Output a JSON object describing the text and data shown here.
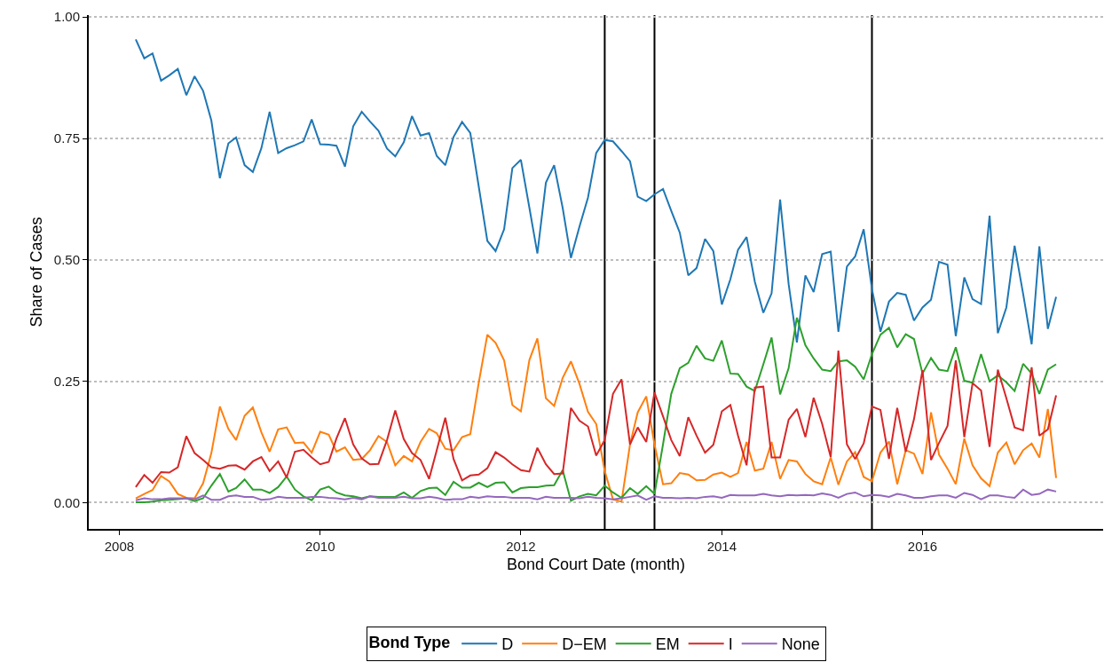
{
  "chart_data": {
    "type": "line",
    "xlabel": "Bond Court Date (month)",
    "ylabel": "Share of Cases",
    "legend_title": "Bond Type",
    "legend": "bottom",
    "grid": "y",
    "line_style": "solid",
    "marker": "none",
    "xlim": [
      "2007-09-12",
      "2017-10-19"
    ],
    "xticks": [
      "2008",
      "2010",
      "2012",
      "2014",
      "2016"
    ],
    "ylim": [
      -0.054,
      1.004
    ],
    "yticks": [
      {
        "value": 0,
        "label": "0.00"
      },
      {
        "value": 0.25,
        "label": "0.25"
      },
      {
        "value": 0.5,
        "label": "0.50"
      },
      {
        "value": 0.75,
        "label": "0.75"
      },
      {
        "value": 1,
        "label": "1.00"
      }
    ],
    "ref_lines": [
      {
        "axis": "x",
        "value": "2012-11",
        "color": "#000000"
      },
      {
        "axis": "x",
        "value": "2013-05",
        "color": "#000000"
      },
      {
        "axis": "x",
        "value": "2015-07",
        "color": "#000000"
      }
    ],
    "x": [
      "2008-03",
      "2008-04",
      "2008-05",
      "2008-06",
      "2008-07",
      "2008-08",
      "2008-09",
      "2008-10",
      "2008-11",
      "2008-12",
      "2009-01",
      "2009-02",
      "2009-03",
      "2009-04",
      "2009-05",
      "2009-06",
      "2009-07",
      "2009-08",
      "2009-09",
      "2009-10",
      "2009-11",
      "2009-12",
      "2010-01",
      "2010-02",
      "2010-03",
      "2010-04",
      "2010-05",
      "2010-06",
      "2010-07",
      "2010-08",
      "2010-09",
      "2010-10",
      "2010-11",
      "2010-12",
      "2011-01",
      "2011-02",
      "2011-03",
      "2011-04",
      "2011-05",
      "2011-06",
      "2011-07",
      "2011-08",
      "2011-09",
      "2011-10",
      "2011-11",
      "2011-12",
      "2012-01",
      "2012-02",
      "2012-03",
      "2012-04",
      "2012-05",
      "2012-06",
      "2012-07",
      "2012-08",
      "2012-09",
      "2012-10",
      "2012-11",
      "2012-12",
      "2013-01",
      "2013-02",
      "2013-03",
      "2013-04",
      "2013-05",
      "2013-06",
      "2013-07",
      "2013-08",
      "2013-09",
      "2013-10",
      "2013-11",
      "2013-12",
      "2014-01",
      "2014-02",
      "2014-03",
      "2014-04",
      "2014-05",
      "2014-06",
      "2014-07",
      "2014-08",
      "2014-09",
      "2014-10",
      "2014-11",
      "2014-12",
      "2015-01",
      "2015-02",
      "2015-03",
      "2015-04",
      "2015-05",
      "2015-06",
      "2015-07",
      "2015-08",
      "2015-09",
      "2015-10",
      "2015-11",
      "2015-12",
      "2016-01",
      "2016-02",
      "2016-03",
      "2016-04",
      "2016-05",
      "2016-06",
      "2016-07",
      "2016-08",
      "2016-09",
      "2016-10",
      "2016-11",
      "2016-12",
      "2017-01",
      "2017-02",
      "2017-03",
      "2017-04",
      "2017-05"
    ],
    "series": [
      {
        "name": "D",
        "color": "#1f77b4",
        "values": [
          0.954,
          0.915,
          0.925,
          0.869,
          0.88,
          0.893,
          0.839,
          0.878,
          0.848,
          0.787,
          0.668,
          0.74,
          0.752,
          0.695,
          0.681,
          0.73,
          0.805,
          0.72,
          0.73,
          0.736,
          0.744,
          0.789,
          0.738,
          0.737,
          0.735,
          0.692,
          0.775,
          0.805,
          0.785,
          0.766,
          0.729,
          0.713,
          0.742,
          0.796,
          0.756,
          0.761,
          0.714,
          0.695,
          0.753,
          0.784,
          0.761,
          0.65,
          0.539,
          0.518,
          0.563,
          0.689,
          0.706,
          0.607,
          0.513,
          0.659,
          0.695,
          0.607,
          0.504,
          0.568,
          0.628,
          0.72,
          0.747,
          0.744,
          0.724,
          0.703,
          0.63,
          0.621,
          0.635,
          0.646,
          0.601,
          0.556,
          0.468,
          0.483,
          0.543,
          0.518,
          0.408,
          0.46,
          0.521,
          0.547,
          0.455,
          0.391,
          0.431,
          0.624,
          0.45,
          0.33,
          0.468,
          0.434,
          0.512,
          0.517,
          0.352,
          0.486,
          0.507,
          0.563,
          0.44,
          0.352,
          0.414,
          0.432,
          0.428,
          0.375,
          0.402,
          0.418,
          0.496,
          0.49,
          0.343,
          0.464,
          0.419,
          0.409,
          0.591,
          0.349,
          0.402,
          0.529,
          0.43,
          0.326,
          0.528,
          0.358,
          0.424
        ]
      },
      {
        "name": "D−EM",
        "color": "#ff7f0e",
        "values": [
          0.009,
          0.018,
          0.026,
          0.055,
          0.044,
          0.018,
          0.01,
          0.009,
          0.04,
          0.102,
          0.198,
          0.152,
          0.129,
          0.179,
          0.196,
          0.145,
          0.105,
          0.151,
          0.155,
          0.123,
          0.124,
          0.103,
          0.146,
          0.14,
          0.105,
          0.114,
          0.088,
          0.09,
          0.108,
          0.137,
          0.125,
          0.077,
          0.096,
          0.085,
          0.125,
          0.152,
          0.143,
          0.111,
          0.108,
          0.135,
          0.141,
          0.248,
          0.346,
          0.329,
          0.293,
          0.201,
          0.188,
          0.294,
          0.338,
          0.215,
          0.199,
          0.257,
          0.291,
          0.245,
          0.187,
          0.162,
          0.065,
          0.007,
          0.002,
          0.12,
          0.186,
          0.219,
          0.12,
          0.038,
          0.04,
          0.061,
          0.058,
          0.046,
          0.047,
          0.058,
          0.062,
          0.053,
          0.061,
          0.125,
          0.066,
          0.07,
          0.125,
          0.049,
          0.088,
          0.085,
          0.059,
          0.044,
          0.038,
          0.093,
          0.037,
          0.085,
          0.104,
          0.053,
          0.044,
          0.103,
          0.126,
          0.038,
          0.108,
          0.101,
          0.059,
          0.186,
          0.099,
          0.07,
          0.038,
          0.132,
          0.077,
          0.05,
          0.034,
          0.103,
          0.124,
          0.079,
          0.108,
          0.122,
          0.093,
          0.193,
          0.051
        ]
      },
      {
        "name": "EM",
        "color": "#2ca02c",
        "values": [
          0.001,
          0.001,
          0.002,
          0.005,
          0.006,
          0.007,
          0.009,
          0.003,
          0.009,
          0.035,
          0.059,
          0.023,
          0.03,
          0.048,
          0.027,
          0.027,
          0.02,
          0.032,
          0.054,
          0.027,
          0.013,
          0.005,
          0.027,
          0.033,
          0.021,
          0.015,
          0.013,
          0.009,
          0.013,
          0.012,
          0.012,
          0.012,
          0.021,
          0.01,
          0.024,
          0.03,
          0.031,
          0.016,
          0.043,
          0.031,
          0.031,
          0.041,
          0.032,
          0.041,
          0.042,
          0.021,
          0.03,
          0.032,
          0.032,
          0.035,
          0.036,
          0.067,
          0.004,
          0.013,
          0.018,
          0.015,
          0.035,
          0.021,
          0.01,
          0.03,
          0.018,
          0.034,
          0.018,
          0.12,
          0.224,
          0.277,
          0.288,
          0.323,
          0.297,
          0.292,
          0.334,
          0.266,
          0.265,
          0.239,
          0.23,
          0.285,
          0.34,
          0.223,
          0.277,
          0.381,
          0.324,
          0.297,
          0.274,
          0.271,
          0.291,
          0.293,
          0.28,
          0.254,
          0.306,
          0.346,
          0.36,
          0.32,
          0.347,
          0.337,
          0.266,
          0.298,
          0.274,
          0.271,
          0.32,
          0.251,
          0.247,
          0.306,
          0.25,
          0.262,
          0.248,
          0.23,
          0.286,
          0.266,
          0.224,
          0.274,
          0.285
        ]
      },
      {
        "name": "I",
        "color": "#d62728",
        "values": [
          0.032,
          0.057,
          0.041,
          0.063,
          0.062,
          0.073,
          0.137,
          0.102,
          0.088,
          0.073,
          0.07,
          0.076,
          0.077,
          0.068,
          0.085,
          0.094,
          0.065,
          0.085,
          0.052,
          0.105,
          0.109,
          0.093,
          0.079,
          0.084,
          0.132,
          0.174,
          0.12,
          0.091,
          0.079,
          0.08,
          0.129,
          0.19,
          0.131,
          0.102,
          0.088,
          0.049,
          0.108,
          0.175,
          0.09,
          0.046,
          0.056,
          0.058,
          0.071,
          0.104,
          0.093,
          0.079,
          0.067,
          0.064,
          0.113,
          0.079,
          0.059,
          0.06,
          0.195,
          0.169,
          0.157,
          0.097,
          0.129,
          0.224,
          0.254,
          0.12,
          0.155,
          0.125,
          0.227,
          0.178,
          0.129,
          0.096,
          0.176,
          0.138,
          0.103,
          0.119,
          0.188,
          0.201,
          0.138,
          0.077,
          0.237,
          0.239,
          0.093,
          0.093,
          0.171,
          0.193,
          0.135,
          0.216,
          0.162,
          0.094,
          0.313,
          0.12,
          0.09,
          0.122,
          0.198,
          0.191,
          0.09,
          0.195,
          0.105,
          0.172,
          0.273,
          0.088,
          0.123,
          0.158,
          0.293,
          0.135,
          0.246,
          0.231,
          0.115,
          0.274,
          0.215,
          0.155,
          0.149,
          0.279,
          0.138,
          0.151,
          0.221
        ]
      },
      {
        "name": "None",
        "color": "#9467bd",
        "values": [
          0.005,
          0.009,
          0.007,
          0.007,
          0.009,
          0.009,
          0.009,
          0.007,
          0.015,
          0.006,
          0.006,
          0.013,
          0.015,
          0.012,
          0.012,
          0.006,
          0.007,
          0.012,
          0.01,
          0.01,
          0.01,
          0.012,
          0.012,
          0.01,
          0.009,
          0.007,
          0.01,
          0.007,
          0.013,
          0.01,
          0.01,
          0.01,
          0.012,
          0.009,
          0.009,
          0.012,
          0.01,
          0.006,
          0.007,
          0.007,
          0.012,
          0.01,
          0.013,
          0.012,
          0.012,
          0.01,
          0.01,
          0.01,
          0.007,
          0.012,
          0.01,
          0.01,
          0.01,
          0.009,
          0.012,
          0.01,
          0.009,
          0.007,
          0.009,
          0.012,
          0.015,
          0.006,
          0.013,
          0.01,
          0.01,
          0.009,
          0.01,
          0.009,
          0.012,
          0.013,
          0.01,
          0.016,
          0.015,
          0.015,
          0.015,
          0.018,
          0.015,
          0.013,
          0.016,
          0.015,
          0.016,
          0.015,
          0.019,
          0.016,
          0.01,
          0.018,
          0.021,
          0.013,
          0.016,
          0.015,
          0.012,
          0.018,
          0.015,
          0.01,
          0.01,
          0.013,
          0.015,
          0.015,
          0.01,
          0.02,
          0.016,
          0.007,
          0.015,
          0.015,
          0.012,
          0.01,
          0.027,
          0.016,
          0.018,
          0.027,
          0.023
        ]
      }
    ]
  }
}
